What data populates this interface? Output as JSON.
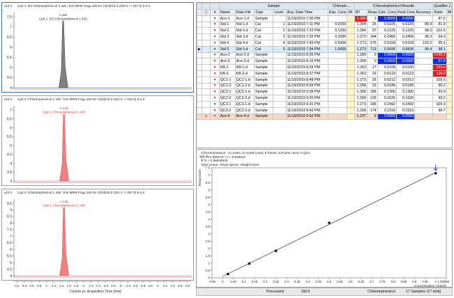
{
  "panels": [
    {
      "exp": "x10 2",
      "title": "Cpd 1: DS-Chloramphenicol 1 426 : ESI MRM Frag=100.0V CID@15.0 (326.0 -> 157.0) 9-2.d",
      "peak_label1": "1.426",
      "peak_label2": "Cpd 1: DS-Chloramphenicol 1 426",
      "y_ticks": [
        "7.5",
        "7",
        "6.5",
        "6",
        "5.5",
        "5",
        "4.5",
        "4"
      ],
      "peak_x": 1.426,
      "peak_color": "#808080",
      "label_color": "#222222"
    },
    {
      "exp": "x10 2",
      "title": "Cpd 2: Chloramphenicol 1 448 : ESI MRM Frag=100.0V CID@15.0 (321.0 -> 152.0) 9-2.d",
      "peak_label1": "1.448",
      "peak_label2": "Cpd 2: Chloramphenicol 1 448",
      "y_ticks": [
        "7",
        "6.5",
        "6",
        "5.5",
        "5",
        "4.5",
        "4",
        "3.5",
        "3"
      ],
      "peak_x": 1.448,
      "peak_color": "#f08080",
      "label_color": "#e03030"
    },
    {
      "exp": "x10 2",
      "title": "Cpd 2: Chloramphenicol 1 448 : ESI MRM Frag=100.0V CID@15.0 (321.0 -> 257.0) 9-2.d",
      "peak_label1": "1.448",
      "peak_label2": "Cpd 2: Chloramphenicol 1 448",
      "y_ticks": [
        "9.5",
        "9",
        "8.5",
        "8",
        "7.5",
        "7",
        "6.5",
        "6",
        "5.5",
        "5",
        "4.5",
        "4"
      ],
      "peak_x": 1.448,
      "peak_color": "#f08080",
      "label_color": "#e03030"
    }
  ],
  "x_axis": {
    "ticks": [
      "0.2",
      "0.4",
      "0.6",
      "0.8",
      "1",
      "1.2",
      "1.4",
      "1.6",
      "1.8",
      "2",
      "2.2",
      "2.4",
      "2.6",
      "2.8",
      "3",
      "3.2",
      "3.4",
      "3.6",
      "3.8",
      "4",
      "4.2",
      "4.4",
      "4.6",
      "4.8"
    ],
    "title": "Counts vs. Acquisition Time (min)"
  },
  "table": {
    "groups": {
      "sample": "Sample",
      "chloram": "Chloram...",
      "results": "Chloramphenicol Results",
      "qualifier": "Qualifier (..."
    },
    "headers": [
      "Name",
      "Data File",
      "Type",
      "Level",
      "Acq. Date-Time",
      "Exp. Conc.",
      "MI",
      "RT",
      "Resp.",
      "Calc. Conc.",
      "Final Conc.",
      "Accuracy",
      "Ratio",
      "MI"
    ],
    "rows": [
      {
        "name": "Ace-1",
        "file": "Ace-1.d",
        "type": "Sample",
        "level": "",
        "acq": "11/19/2019 7:00 PM",
        "exp": "",
        "rt": "1.366",
        "resp": "1",
        "calc": "0.0000",
        "final": "0.0000",
        "acc": "",
        "ratio": "87.6",
        "rtc": "red",
        "calcc": "blue",
        "ratioc": ""
      },
      {
        "name": "Std 1",
        "file": "Std 1.d",
        "type": "Cal",
        "level": "1",
        "acq": "11/19/2019 7:11 PM",
        "exp": "0.0250",
        "rt": "1.304",
        "resp": "26",
        "calc": "0.0225",
        "final": "0.0225",
        "acc": "89.9",
        "ratio": "81.0",
        "rtc": "",
        "calcc": "",
        "ratioc": ""
      },
      {
        "name": "Std 2",
        "file": "Std 2.d",
        "type": "Cal",
        "level": "2",
        "acq": "11/19/2019 7:22 PM",
        "exp": "0.1250",
        "rt": "1.284",
        "resp": "97",
        "calc": "0.1225",
        "final": "0.1225",
        "acc": "98.0",
        "ratio": "102.6",
        "rtc": "",
        "calcc": "",
        "ratioc": ""
      },
      {
        "name": "Std 3",
        "file": "Std 3.d",
        "type": "Cal",
        "level": "3",
        "acq": "11/19/2019 7:32 PM",
        "exp": "0.2500",
        "rt": "1.279",
        "resp": "184",
        "calc": "0.2456",
        "final": "0.2456",
        "acc": "98.2",
        "ratio": "94.3",
        "rtc": "",
        "calcc": "",
        "ratioc": ""
      },
      {
        "name": "Std 4",
        "file": "Std 4.d",
        "type": "Cal",
        "level": "4",
        "acq": "11/19/2019 7:43 PM",
        "exp": "0.5000",
        "rt": "1.273",
        "resp": "375",
        "calc": "0.5158",
        "final": "0.5158",
        "acc": "103.2",
        "ratio": "95.2",
        "rtc": "",
        "calcc": "",
        "ratioc": ""
      },
      {
        "name": "Std 5",
        "file": "Std 5.d",
        "type": "Cal",
        "level": "5",
        "acq": "11/19/2019 7:54 PM",
        "exp": "1.0000",
        "rt": "1.273",
        "resp": "713",
        "calc": "0.9936",
        "final": "0.9936",
        "acc": "99.4",
        "ratio": "98.1",
        "rtc": "",
        "calcc": "",
        "ratioc": "",
        "selected": true
      },
      {
        "name": "Ace-2",
        "file": "Ace-2.d",
        "type": "Sample",
        "level": "",
        "acq": "11/19/2019 8:05 PM",
        "exp": "",
        "rt": "1.289",
        "resp": "0",
        "calc": "0.0000",
        "final": "0.0000",
        "acc": "",
        "ratio": "1349.2",
        "rtc": "",
        "calcc": "blue",
        "ratioc": "red"
      },
      {
        "name": "Ace-3",
        "file": "Ace-3.d",
        "type": "Sample",
        "level": "",
        "acq": "11/19/2019 8:16 PM",
        "exp": "",
        "rt": "1.268",
        "resp": "0",
        "calc": "0.0000",
        "final": "0.0000",
        "acc": "",
        "ratio": "67.6",
        "rtc": "",
        "calcc": "blue",
        "ratioc": "blue"
      },
      {
        "name": "KB-1",
        "file": "KB-1.d",
        "type": "Sample",
        "level": "",
        "acq": "11/19/2019 8:26 PM",
        "exp": "",
        "rt": "1.263",
        "resp": "17",
        "calc": "0.0100",
        "final": "0.0100",
        "acc": "",
        "ratio": "133.4",
        "rtc": "",
        "calcc": "",
        "ratioc": "red"
      },
      {
        "name": "KB-2",
        "file": "KB-2.d",
        "type": "Sample",
        "level": "",
        "acq": "11/19/2019 8:37 PM",
        "exp": "",
        "rt": "1.263",
        "resp": "19",
        "calc": "0.0123",
        "final": "0.0123",
        "acc": "",
        "ratio": "118.0",
        "rtc": "",
        "calcc": "",
        "ratioc": "red"
      },
      {
        "name": "QC1-1",
        "file": "QC1-1.d",
        "type": "Sample",
        "level": "",
        "acq": "11/19/2019 8:48 PM",
        "exp": "",
        "rt": "1.273",
        "resp": "25",
        "calc": "0.0212",
        "final": "0.0212",
        "acc": "",
        "ratio": "106.0",
        "rtc": "",
        "calcc": "",
        "ratioc": ""
      },
      {
        "name": "QC1-2",
        "file": "QC1-2.d",
        "type": "Sample",
        "level": "",
        "acq": "11/19/2019 8:59 PM",
        "exp": "",
        "rt": "1.268",
        "resp": "22",
        "calc": "0.0186",
        "final": "0.0186",
        "acc": "",
        "ratio": "90.2",
        "rtc": "",
        "calcc": "",
        "ratioc": ""
      },
      {
        "name": "QC2-1",
        "file": "QC2-1.d",
        "type": "Sample",
        "level": "",
        "acq": "11/19/2019 9:09 PM",
        "exp": "",
        "rt": "1.268",
        "resp": "106",
        "calc": "0.1360",
        "final": "0.1360",
        "acc": "",
        "ratio": "93.9",
        "rtc": "",
        "calcc": "",
        "ratioc": ""
      },
      {
        "name": "QC2-2",
        "file": "QC2-2.d",
        "type": "Sample",
        "level": "",
        "acq": "11/19/2019 9:20 PM",
        "exp": "",
        "rt": "1.268",
        "resp": "125",
        "calc": "0.1626",
        "final": "0.1626",
        "acc": "",
        "ratio": "93.2",
        "rtc": "",
        "calcc": "",
        "ratioc": ""
      },
      {
        "name": "QC3-1",
        "file": "QC3-1.d",
        "type": "Sample",
        "level": "",
        "acq": "11/19/2019 9:31 PM",
        "exp": "",
        "rt": "1.273",
        "resp": "186",
        "calc": "0.2492",
        "final": "0.2492",
        "acc": "",
        "ratio": "105.3",
        "rtc": "",
        "calcc": "",
        "ratioc": ""
      },
      {
        "name": "QC3-2",
        "file": "QC3-2.d",
        "type": "Sample",
        "level": "",
        "acq": "11/19/2019 9:42 PM",
        "exp": "",
        "rt": "1.268",
        "resp": "174",
        "calc": "0.2316",
        "final": "0.2316",
        "acc": "",
        "ratio": "99.7",
        "rtc": "",
        "calcc": "",
        "ratioc": ""
      },
      {
        "name": "Ace-4",
        "file": "Ace-4.d",
        "type": "Sample",
        "level": "",
        "acq": "11/19/2019 9:52 PM",
        "exp": "",
        "rt": "1.237",
        "resp": "0",
        "calc": "0.0000",
        "final": "0.0000",
        "acc": "",
        "ratio": "",
        "rtc": "",
        "calcc": "blue",
        "ratioc": "",
        "orange": true
      }
    ]
  },
  "calibration": {
    "line1": "Chloramphenicol - 5 Levels, 5 Levels Used, 5 Points, 5 Points Used, 0 QCs",
    "line2": "y = 707.995270 * x + 9.836242",
    "line3": "R^2 = 0.99946845",
    "line4": "Type:Linear, Origin:Ignore, Weight:None",
    "exp": "x10 2",
    "ylabel": "Responses",
    "xlabel": "Concentration (ng/ml)",
    "x_exp": "x 10^1",
    "y_ticks": [
      "7.5",
      "7",
      "6.5",
      "6",
      "5.5",
      "5",
      "4.5",
      "4",
      "3.5",
      "3",
      "2.5",
      "2",
      "1.5",
      "1",
      "0.5",
      "0"
    ],
    "x_ticks": [
      "-0.05",
      "0",
      "0.05",
      "0.1",
      "0.15",
      "0.2",
      "0.25",
      "0.3",
      "0.35",
      "0.4",
      "0.45",
      "0.5",
      "0.55",
      "0.6",
      "0.65",
      "0.7",
      "0.75",
      "0.8",
      "0.85",
      "0.9",
      "0.95",
      "1",
      "1.05"
    ]
  },
  "chart_data": {
    "type": "scatter",
    "title": "",
    "xlabel": "Concentration (ng/ml)",
    "ylabel": "Responses",
    "x": [
      0.025,
      0.125,
      0.25,
      0.5,
      1.0
    ],
    "y": [
      26,
      97,
      184,
      375,
      713
    ],
    "xlim": [
      -0.05,
      1.05
    ],
    "ylim": [
      0,
      750
    ]
  },
  "status": {
    "state": "Processed",
    "sample": "Std 5",
    "compound": "Chloramphenicol",
    "count": "17 Samples (17 total)"
  }
}
